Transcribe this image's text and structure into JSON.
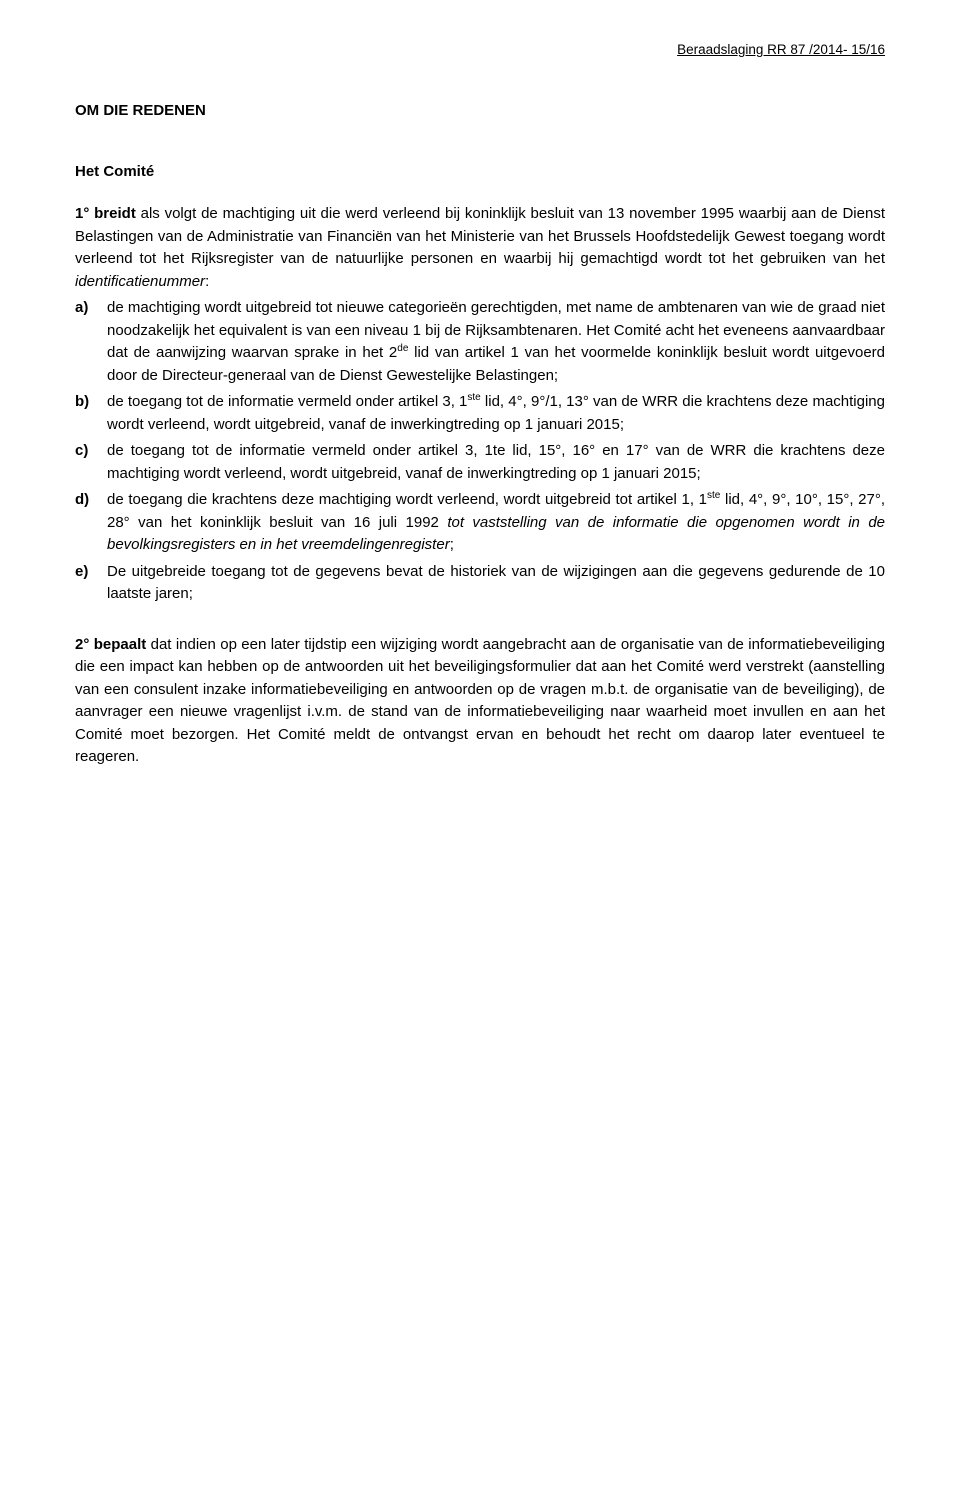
{
  "header": "Beraadslaging RR 87 /2014- 15/16",
  "title": "OM DIE REDENEN",
  "subtitle": "Het Comité",
  "intro": {
    "lead": "1° breidt",
    "rest_a": " als volgt de machtiging uit die werd verleend bij koninklijk besluit van 13 november 1995 waarbij aan de Dienst Belastingen van de Administratie van Financiën van het Ministerie van het Brussels Hoofdstedelijk Gewest toegang wordt verleend tot het Rijksregister van de natuurlijke personen en waarbij hij gemachtigd wordt tot het gebruiken van het ",
    "rest_b_italic": "identificatienummer",
    "rest_c": ":"
  },
  "items": {
    "a": {
      "marker": "a)",
      "p1": "de machtiging wordt uitgebreid tot nieuwe categorieën gerechtigden, met name de ambtenaren van wie de graad niet noodzakelijk het equivalent is van een niveau 1 bij de Rijksambtenaren. Het Comité acht het  eveneens aanvaardbaar dat de aanwijzing waarvan sprake in het 2",
      "sup1": "de",
      "p2": " lid van artikel 1 van het voormelde koninklijk besluit wordt uitgevoerd door de Directeur-generaal van de Dienst Gewestelijke Belastingen;"
    },
    "b": {
      "marker": "b)",
      "p1": "de toegang tot de informatie vermeld onder artikel 3, 1",
      "sup1": "ste",
      "p2": " lid, 4°, 9°/1, 13° van de WRR die krachtens deze machtiging wordt verleend, wordt uitgebreid, vanaf de inwerkingtreding op 1 januari 2015;"
    },
    "c": {
      "marker": "c)",
      "text": "de toegang tot de informatie vermeld onder artikel 3, 1te lid, 15°, 16° en 17° van de WRR die krachtens deze machtiging wordt verleend, wordt uitgebreid, vanaf de inwerkingtreding op 1 januari 2015;"
    },
    "d": {
      "marker": "d)",
      "p1": "de toegang die krachtens deze machtiging wordt verleend, wordt uitgebreid tot artikel 1, 1",
      "sup1": "ste",
      "p2": " lid, 4°, 9°, 10°, 15°, 27°, 28° van het koninklijk besluit van 16 juli 1992 ",
      "italic": "tot vaststelling van de informatie die opgenomen wordt in de bevolkingsregisters en in het vreemdelingenregister",
      "p3": ";"
    },
    "e": {
      "marker": "e)",
      "text": "De uitgebreide toegang tot de gegevens bevat de historiek van de wijzigingen aan die gegevens gedurende de 10 laatste jaren;"
    }
  },
  "para2": {
    "lead": "2° bepaalt",
    "rest": " dat indien op een later tijdstip een wijziging wordt aangebracht aan de organisatie van de informatiebeveiliging die een impact kan hebben op de antwoorden uit het beveiligingsformulier dat aan het Comité werd verstrekt (aanstelling van een consulent inzake informatiebeveiliging en antwoorden op de vragen m.b.t. de organisatie van de beveiliging), de aanvrager een nieuwe vragenlijst i.v.m. de stand van de informatiebeveiliging naar waarheid moet invullen en aan het Comité moet bezorgen. Het Comité meldt de ontvangst ervan en behoudt het recht om daarop later eventueel te reageren."
  }
}
